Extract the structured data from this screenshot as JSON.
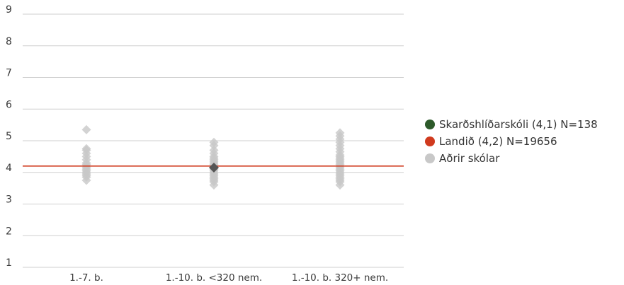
{
  "chart_data": {
    "type": "scatter",
    "ylim": [
      1,
      9
    ],
    "yticks": [
      1,
      2,
      3,
      4,
      5,
      6,
      7,
      8,
      9
    ],
    "categories": [
      "1.-7. b.",
      "1.-10. b. <320 nem.",
      "1.-10. b. 320+ nem."
    ],
    "reference_line": {
      "name": "Landið (4,2) N=19656",
      "value": 4.2,
      "color": "#d03a1e"
    },
    "series": [
      {
        "name": "Aðrir skólar",
        "color": "#c8c8c8",
        "points": [
          {
            "category": "1.-7. b.",
            "values": [
              5.35,
              4.75,
              4.7,
              4.6,
              4.5,
              4.4,
              4.3,
              4.25,
              4.2,
              4.15,
              4.1,
              4.05,
              4.0,
              3.95,
              3.9,
              3.85,
              3.75
            ]
          },
          {
            "category": "1.-10. b. <320 nem.",
            "values": [
              4.95,
              4.85,
              4.7,
              4.6,
              4.5,
              4.45,
              4.4,
              4.35,
              4.3,
              4.25,
              4.2,
              4.1,
              4.05,
              4.0,
              3.95,
              3.9,
              3.85,
              3.8,
              3.75,
              3.7,
              3.6
            ]
          },
          {
            "category": "1.-10. b. 320+ nem.",
            "values": [
              5.25,
              5.15,
              5.05,
              4.95,
              4.85,
              4.75,
              4.65,
              4.55,
              4.5,
              4.45,
              4.4,
              4.35,
              4.3,
              4.25,
              4.2,
              4.15,
              4.1,
              4.05,
              4.0,
              3.95,
              3.9,
              3.85,
              3.8,
              3.75,
              3.7,
              3.6
            ]
          }
        ]
      },
      {
        "name": "Skarðshlíðarskóli (4,1) N=138",
        "color": "#2d5a2a",
        "marker_color": "#555555",
        "points": [
          {
            "category": "1.-10. b. <320 nem.",
            "values": [
              4.15
            ]
          }
        ]
      }
    ],
    "legend": {
      "placement": "right",
      "items": [
        {
          "label": "Skarðshlíðarskóli (4,1) N=138",
          "color": "#2d5a2a"
        },
        {
          "label": "Landið (4,2) N=19656",
          "color": "#d03a1e"
        },
        {
          "label": "Aðrir skólar",
          "color": "#c8c8c8"
        }
      ]
    },
    "grid": true
  }
}
